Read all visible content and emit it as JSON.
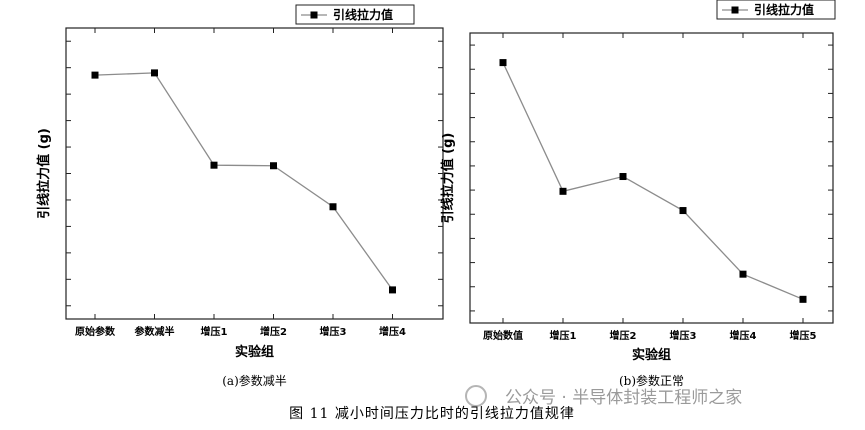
{
  "chart_data": [
    {
      "type": "line",
      "subtitle": "(a)参数减半",
      "xlabel": "实验组",
      "ylabel": "引线拉力值 (g)",
      "categories": [
        "原始参数",
        "参数减半",
        "增压1",
        "增压2",
        "增压3",
        "增压4"
      ],
      "series": [
        {
          "name": "引线拉力值",
          "values": [
            8.3,
            8.38,
            5.05,
            5.03,
            3.55,
            0.55
          ]
        }
      ],
      "ylim": [
        -0.5,
        10
      ],
      "y_ticks_labeled": false,
      "legend_position": "top-right",
      "grid": false
    },
    {
      "type": "line",
      "subtitle": "(b)参数正常",
      "xlabel": "实验组",
      "ylabel": "引线拉力值 (g)",
      "categories": [
        "原始数值",
        "增压1",
        "增压2",
        "增压3",
        "增压4",
        "增压5"
      ],
      "series": [
        {
          "name": "引线拉力值",
          "values": [
            8.0,
            3.65,
            4.15,
            3.0,
            0.85,
            0.0
          ]
        }
      ],
      "ylim": [
        -0.8,
        9
      ],
      "y_ticks_labeled": false,
      "legend_position": "top-right",
      "grid": false
    }
  ],
  "caption": "图 11  减小时间压力比时的引线拉力值规律",
  "watermark": "公众号 · 半导体封装工程师之家",
  "colors": {
    "line": "#8c8c8c",
    "marker": "#000000",
    "axis": "#222222"
  }
}
